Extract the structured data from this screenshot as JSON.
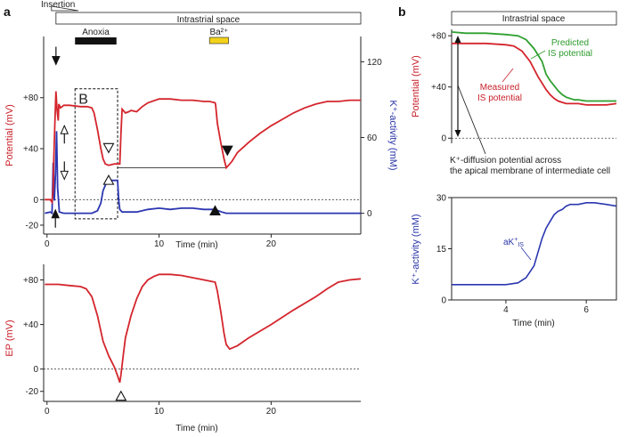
{
  "panels": {
    "a": "a",
    "b": "b"
  },
  "colors": {
    "red": "#d4252d",
    "blue": "#2b36b0",
    "green": "#2fa02f",
    "black": "#111111",
    "yellow": "#f3d21c"
  },
  "top_bars": {
    "insertion": "Insertion",
    "intrastrial_space": "Intrastrial space",
    "anoxia": "Anoxia",
    "ba": "Ba²⁺",
    "b_intrastrial_space": "Intrastrial space"
  },
  "annotations": {
    "box_label": "B",
    "predicted": [
      "Predicted",
      "IS potential"
    ],
    "measured": [
      "Measured",
      "IS potential"
    ],
    "kdiff": [
      "K⁺-diffusion potential across",
      "the apical membrane of intermediate cell"
    ],
    "ak_main": "aK",
    "ak_sup": "+",
    "ak_sub": "IS"
  },
  "chart_data": [
    {
      "id": "a-top",
      "type": "line",
      "title": "",
      "xlabel": "Time (min)",
      "ylabel": "Potential (mV)",
      "ylabel2": "K⁺-activity (mM)",
      "xlim": [
        -0.3,
        28
      ],
      "ylim": [
        -27,
        128
      ],
      "y2lim": [
        -16.5,
        140
      ],
      "xticks": [
        0,
        10,
        20
      ],
      "yticks": [
        -20,
        0,
        40,
        80
      ],
      "ytick_labels": [
        "-20",
        "0",
        "+40",
        "+80"
      ],
      "y2ticks": [
        0,
        60,
        120
      ],
      "y2tick_labels": [
        "0",
        "60",
        "120"
      ],
      "series": [
        {
          "name": "Potential",
          "axis": "left",
          "color": "red",
          "x": [
            -0.2,
            0.3,
            0.45,
            0.55,
            0.6,
            0.7,
            0.8,
            0.9,
            1.0,
            1.05,
            1.1,
            1.2,
            1.5,
            2.0,
            3.0,
            3.6,
            4.0,
            4.2,
            4.5,
            4.8,
            5.0,
            5.2,
            5.5,
            6.0,
            6.3,
            6.5,
            6.6,
            6.7,
            7.0,
            7.3,
            7.5,
            8.0,
            8.5,
            9.0,
            10.0,
            11.0,
            12.0,
            13.0,
            14.0,
            14.5,
            15.0,
            15.05,
            15.2,
            15.5,
            15.8,
            16.0,
            16.2,
            16.5,
            17.0,
            18.0,
            19.0,
            20.0,
            21.0,
            22.0,
            23.0,
            24.0,
            25.0,
            26.0,
            27.0,
            28.0
          ],
          "y": [
            0,
            0,
            -2,
            8,
            30,
            60,
            85,
            70,
            62,
            75,
            74,
            72,
            74,
            74,
            73,
            73,
            72,
            68,
            55,
            40,
            32,
            28,
            27,
            28,
            28,
            28,
            52,
            71,
            68,
            69,
            70,
            69,
            73,
            76,
            79,
            79,
            78,
            78,
            77,
            77,
            76,
            74,
            60,
            45,
            32,
            25,
            27,
            30,
            37,
            45,
            52,
            58,
            63,
            68,
            72,
            75,
            77,
            77,
            78,
            78
          ]
        },
        {
          "name": "K⁺-activity",
          "axis": "right",
          "color": "blue",
          "x": [
            -0.2,
            0.3,
            0.45,
            0.55,
            0.65,
            0.75,
            0.85,
            0.95,
            1.1,
            1.5,
            2.0,
            3.0,
            4.0,
            4.5,
            4.8,
            5.0,
            5.3,
            5.6,
            6.0,
            6.3,
            6.4,
            6.5,
            6.7,
            7.0,
            8.0,
            9.0,
            10.0,
            11.0,
            12.0,
            13.0,
            14.0,
            15.0,
            15.3,
            15.6,
            16.0,
            17.0,
            18.0,
            20.0,
            22.0,
            25.0,
            28.0
          ],
          "y": [
            0,
            1,
            0,
            40,
            10,
            30,
            65,
            20,
            1,
            0,
            0,
            0,
            0,
            2,
            8,
            18,
            24,
            26,
            26,
            26,
            10,
            3,
            1,
            1,
            1,
            3,
            4,
            3,
            4,
            4,
            3,
            3,
            2,
            1,
            0,
            0,
            0,
            0,
            0,
            0,
            0
          ]
        }
      ],
      "reference_lines": [
        {
          "y": 0,
          "style": "dotted"
        }
      ],
      "markers": [
        {
          "label": "filled-down-arrow",
          "x": 0.8,
          "y": 106
        },
        {
          "label": "open-up-arrow",
          "x": 1.55,
          "y": 58
        },
        {
          "label": "open-down-arrow",
          "x": 1.55,
          "y": 16
        },
        {
          "label": "filled-up-arrow",
          "x": 0.75,
          "y": -8
        },
        {
          "label": "open-down-triangle",
          "x": 5.5,
          "y": 37
        },
        {
          "label": "open-up-triangle",
          "x": 5.5,
          "y": 19
        },
        {
          "label": "filled-down-triangle",
          "x": 16.1,
          "y": 35
        },
        {
          "label": "filled-up-triangle",
          "x": 15.0,
          "y": -5
        }
      ],
      "bars": {
        "intrastrial_space": [
          0.8,
          28
        ],
        "anoxia": [
          2.5,
          6.2
        ],
        "ba": [
          14.5,
          16.2
        ],
        "insertion": [
          0.4,
          2.8
        ]
      },
      "box": {
        "x": [
          2.5,
          6.3
        ],
        "y": [
          -15,
          87
        ],
        "label": "B"
      },
      "link_line": {
        "x": [
          6.3,
          16.0
        ],
        "y": 25
      }
    },
    {
      "id": "a-bottom",
      "type": "line",
      "title": "",
      "xlabel": "Time (min)",
      "ylabel": "EP (mV)",
      "xlim": [
        -0.3,
        28
      ],
      "ylim": [
        -29,
        94
      ],
      "xticks": [
        0,
        10,
        20
      ],
      "yticks": [
        -20,
        0,
        40,
        80
      ],
      "ytick_labels": [
        "-20",
        "0",
        "+40",
        "+80"
      ],
      "series": [
        {
          "name": "EP",
          "color": "red",
          "x": [
            -0.2,
            1.0,
            2.0,
            3.0,
            3.5,
            4.0,
            4.5,
            5.0,
            5.5,
            6.0,
            6.3,
            6.5,
            6.6,
            6.8,
            7.0,
            7.5,
            8.0,
            8.5,
            9.0,
            9.5,
            10.0,
            11.0,
            12.0,
            13.0,
            14.0,
            14.5,
            15.0,
            15.2,
            15.5,
            15.8,
            16.0,
            16.3,
            17.0,
            18.0,
            20.0,
            22.0,
            24.0,
            25.0,
            26.0,
            27.0,
            28.0
          ],
          "y": [
            76,
            76,
            75,
            74,
            72,
            65,
            48,
            25,
            12,
            2,
            -6,
            -12,
            -5,
            12,
            28,
            48,
            63,
            74,
            80,
            83,
            85,
            85,
            84,
            82,
            80,
            79,
            78,
            70,
            52,
            32,
            22,
            18,
            21,
            28,
            40,
            53,
            65,
            72,
            78,
            80,
            81
          ]
        }
      ],
      "reference_lines": [
        {
          "y": 0,
          "style": "dotted"
        }
      ],
      "markers": [
        {
          "label": "open-up-triangle",
          "x": 6.6,
          "y": -20
        }
      ]
    },
    {
      "id": "b-top",
      "type": "line",
      "title": "",
      "xlabel": "",
      "ylabel": "Potential (mV)",
      "xlim": [
        2.65,
        6.75
      ],
      "ylim": [
        -4,
        85
      ],
      "yticks": [
        0,
        40,
        80
      ],
      "ytick_labels": [
        "0",
        "+40",
        "+80"
      ],
      "series": [
        {
          "name": "Predicted IS potential",
          "color": "green",
          "x": [
            2.65,
            3.0,
            3.5,
            4.0,
            4.3,
            4.5,
            4.7,
            4.9,
            5.0,
            5.1,
            5.2,
            5.3,
            5.4,
            5.5,
            5.6,
            5.7,
            5.8,
            6.0,
            6.2,
            6.5,
            6.75
          ],
          "y": [
            83,
            82,
            82,
            81,
            80,
            77,
            70,
            60,
            50,
            45,
            41,
            37,
            34,
            32,
            31,
            30,
            30,
            29,
            29,
            29,
            29
          ]
        },
        {
          "name": "Measured IS potential",
          "color": "red",
          "x": [
            2.65,
            3.0,
            3.5,
            4.0,
            4.2,
            4.4,
            4.6,
            4.8,
            5.0,
            5.1,
            5.2,
            5.3,
            5.4,
            5.5,
            5.6,
            5.8,
            6.0,
            6.2,
            6.5,
            6.75
          ],
          "y": [
            74,
            74,
            74,
            73,
            72,
            68,
            60,
            48,
            38,
            34,
            31,
            29,
            28,
            27,
            27,
            27,
            26,
            26,
            26,
            27
          ]
        }
      ],
      "reference_lines": [
        {
          "y": 0,
          "style": "dotted"
        }
      ]
    },
    {
      "id": "b-bottom",
      "type": "line",
      "title": "",
      "xlabel": "Time (min)",
      "ylabel": "K⁺-activity (mM)",
      "xlim": [
        2.65,
        6.75
      ],
      "ylim": [
        0,
        30
      ],
      "xticks": [
        4,
        6
      ],
      "yticks": [
        0,
        15,
        30
      ],
      "ytick_labels": [
        "0",
        "15",
        "30"
      ],
      "series": [
        {
          "name": "aK⁺IS",
          "color": "blue",
          "x": [
            2.65,
            3.0,
            3.5,
            4.0,
            4.3,
            4.5,
            4.7,
            4.8,
            4.9,
            5.0,
            5.1,
            5.2,
            5.3,
            5.4,
            5.5,
            5.6,
            5.8,
            6.0,
            6.2,
            6.5,
            6.75
          ],
          "y": [
            4.5,
            4.5,
            4.5,
            4.5,
            5.0,
            6.5,
            10.0,
            14.0,
            18.0,
            21.0,
            23.0,
            25.0,
            26.0,
            26.5,
            27.5,
            28.0,
            28.0,
            28.5,
            28.5,
            28.0,
            27.5
          ]
        }
      ]
    }
  ]
}
